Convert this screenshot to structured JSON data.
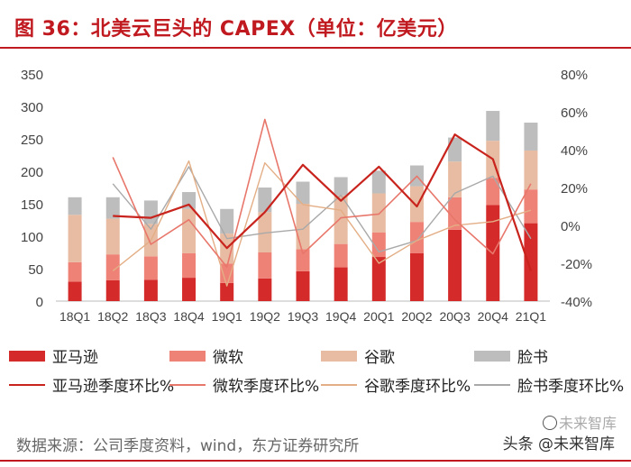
{
  "title": "图 36：北美云巨头的 CAPEX（单位：亿美元）",
  "source": "数据来源：公司季度资料，wind，东方证券研究所",
  "watermark": {
    "text": "头条 @未来智库",
    "faint": "未来智库"
  },
  "colors": {
    "brand": "#c0191f",
    "amazon_bar": "#d42a2a",
    "microsoft_bar": "#ef8277",
    "google_bar": "#e8bca2",
    "facebook_bar": "#bdbdbd",
    "amazon_line": "#c8231c",
    "microsoft_line": "#e8776b",
    "google_line": "#e3ae85",
    "facebook_line": "#a9a9a9"
  },
  "legend": [
    {
      "label": "亚马逊",
      "kind": "bar",
      "color": "#d42a2a"
    },
    {
      "label": "微软",
      "kind": "bar",
      "color": "#ef8277"
    },
    {
      "label": "谷歌",
      "kind": "bar",
      "color": "#e8bca2"
    },
    {
      "label": "脸书",
      "kind": "bar",
      "color": "#bdbdbd"
    },
    {
      "label": "亚马逊季度环比%",
      "kind": "line",
      "color": "#c8231c"
    },
    {
      "label": "微软季度环比%",
      "kind": "line",
      "color": "#e8776b"
    },
    {
      "label": "谷歌季度环比%",
      "kind": "line",
      "color": "#e3ae85"
    },
    {
      "label": "脸书季度环比%",
      "kind": "line",
      "color": "#a9a9a9"
    }
  ],
  "chart_data": {
    "type": "bar",
    "title": "图 36：北美云巨头的 CAPEX（单位：亿美元）",
    "categories": [
      "18Q1",
      "18Q2",
      "18Q3",
      "18Q4",
      "19Q1",
      "19Q2",
      "19Q3",
      "19Q4",
      "20Q1",
      "20Q2",
      "20Q3",
      "20Q4",
      "21Q1"
    ],
    "y_left": {
      "ylim": [
        0,
        350
      ],
      "ticks": [
        "0",
        "50",
        "100",
        "150",
        "200",
        "250",
        "300",
        "350"
      ]
    },
    "y_right": {
      "ylim": [
        -40,
        80
      ],
      "ticks": [
        "-40%",
        "-20%",
        "0%",
        "20%",
        "40%",
        "60%",
        "80%"
      ]
    },
    "stacked": true,
    "series": [
      {
        "name": "亚马逊",
        "type": "bar",
        "axis": "left",
        "values": [
          30,
          32,
          33,
          36,
          28,
          35,
          46,
          52,
          68,
          74,
          110,
          148,
          120
        ]
      },
      {
        "name": "微软",
        "type": "bar",
        "axis": "left",
        "values": [
          30,
          40,
          36,
          38,
          30,
          40,
          34,
          36,
          38,
          48,
          50,
          42,
          52
        ]
      },
      {
        "name": "谷歌",
        "type": "bar",
        "axis": "left",
        "values": [
          73,
          55,
          50,
          68,
          46,
          62,
          70,
          75,
          60,
          55,
          55,
          57,
          60
        ]
      },
      {
        "name": "脸书",
        "type": "bar",
        "axis": "left",
        "values": [
          27,
          33,
          36,
          26,
          38,
          38,
          34,
          28,
          35,
          32,
          37,
          46,
          43
        ]
      },
      {
        "name": "亚马逊季度环比%",
        "type": "line",
        "axis": "right",
        "values": [
          null,
          5,
          4,
          11,
          -12,
          7,
          32,
          13,
          31,
          10,
          48,
          35,
          -24
        ]
      },
      {
        "name": "微软季度环比%",
        "type": "line",
        "axis": "right",
        "values": [
          null,
          36,
          -10,
          3,
          -22,
          56,
          -15,
          4,
          6,
          26,
          3,
          -15,
          22
        ]
      },
      {
        "name": "谷歌季度环比%",
        "type": "line",
        "axis": "right",
        "values": [
          null,
          -24,
          -8,
          34,
          -32,
          33,
          11,
          8,
          -20,
          -8,
          0,
          2,
          8
        ]
      },
      {
        "name": "脸书季度环比%",
        "type": "line",
        "axis": "right",
        "values": [
          null,
          22,
          -2,
          31,
          -7,
          -4,
          -2,
          16,
          -14,
          -8,
          17,
          26,
          -7
        ]
      }
    ],
    "grid": false,
    "legend_position": "bottom"
  }
}
